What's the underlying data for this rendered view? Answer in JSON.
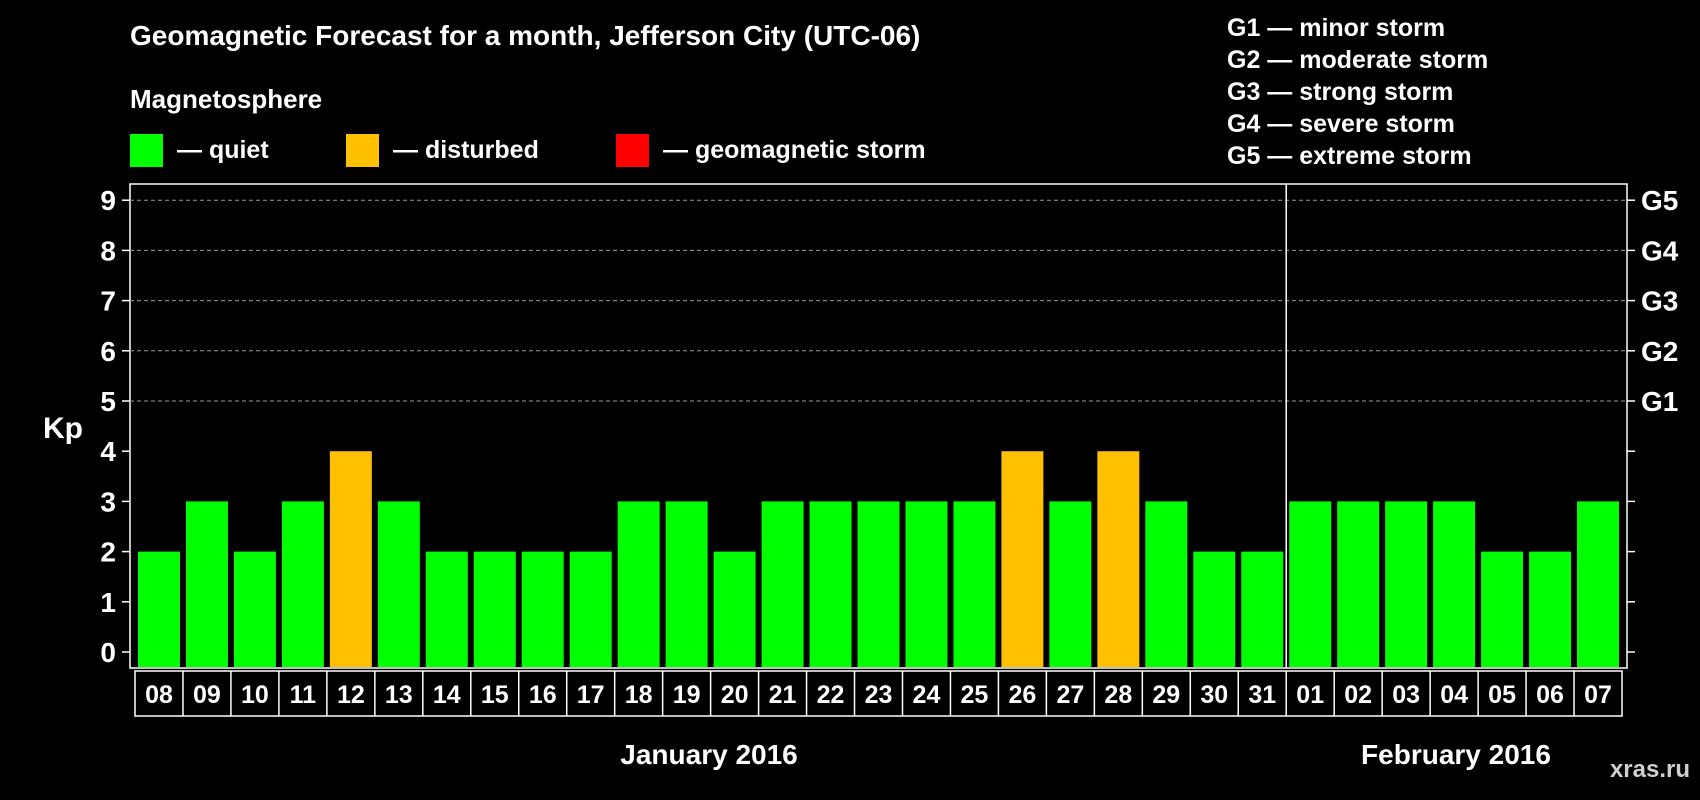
{
  "header": {
    "title": "Geomagnetic Forecast for a month, Jefferson City (UTC-06)",
    "subtitle": "Magnetosphere"
  },
  "legend": [
    {
      "label": "— quiet",
      "color": "#00ff00"
    },
    {
      "label": "— disturbed",
      "color": "#ffc000"
    },
    {
      "label": "— geomagnetic storm",
      "color": "#ff0000"
    }
  ],
  "storm_scale": [
    "G1 — minor storm",
    "G2 — moderate storm",
    "G3 — strong storm",
    "G4 — severe storm",
    "G5 — extreme storm"
  ],
  "watermark": "xras.ru",
  "chart_data": {
    "type": "bar",
    "ylabel": "Kp",
    "ylim": [
      0,
      9
    ],
    "yticks": [
      "0",
      "1",
      "2",
      "3",
      "4",
      "5",
      "6",
      "7",
      "8",
      "9"
    ],
    "right_labels": [
      {
        "kp": 5,
        "label": "G1"
      },
      {
        "kp": 6,
        "label": "G2"
      },
      {
        "kp": 7,
        "label": "G3"
      },
      {
        "kp": 8,
        "label": "G4"
      },
      {
        "kp": 9,
        "label": "G5"
      }
    ],
    "grid": "dashed horizontal lines at Kp 5-9",
    "categories": [
      "08",
      "09",
      "10",
      "11",
      "12",
      "13",
      "14",
      "15",
      "16",
      "17",
      "18",
      "19",
      "20",
      "21",
      "22",
      "23",
      "24",
      "25",
      "26",
      "27",
      "28",
      "29",
      "30",
      "31",
      "01",
      "02",
      "03",
      "04",
      "05",
      "06",
      "07"
    ],
    "values": [
      2,
      3,
      2,
      3,
      4,
      3,
      2,
      2,
      2,
      2,
      3,
      3,
      2,
      3,
      3,
      3,
      3,
      3,
      4,
      3,
      4,
      3,
      2,
      2,
      3,
      3,
      3,
      3,
      2,
      2,
      3
    ],
    "status": [
      "quiet",
      "quiet",
      "quiet",
      "quiet",
      "disturbed",
      "quiet",
      "quiet",
      "quiet",
      "quiet",
      "quiet",
      "quiet",
      "quiet",
      "quiet",
      "quiet",
      "quiet",
      "quiet",
      "quiet",
      "quiet",
      "disturbed",
      "quiet",
      "disturbed",
      "quiet",
      "quiet",
      "quiet",
      "quiet",
      "quiet",
      "quiet",
      "quiet",
      "quiet",
      "quiet",
      "quiet"
    ],
    "status_colors": {
      "quiet": "#00ff00",
      "disturbed": "#ffc000",
      "storm": "#ff0000"
    },
    "months": [
      {
        "label": "January 2016",
        "first_index": 0,
        "last_index": 23
      },
      {
        "label": "February 2016",
        "first_index": 24,
        "last_index": 30
      }
    ]
  }
}
